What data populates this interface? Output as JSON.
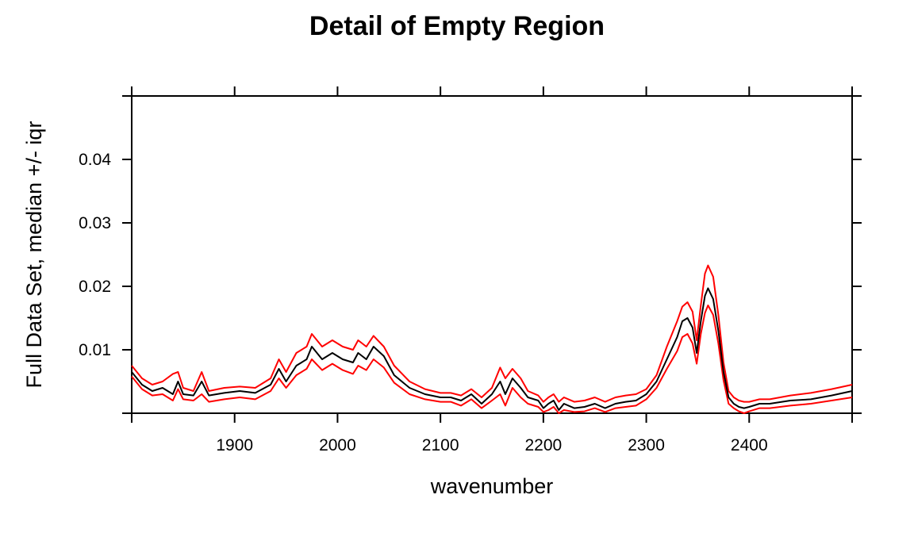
{
  "chart_data": {
    "type": "line",
    "title": "Detail of Empty Region",
    "xlabel": "wavenumber",
    "ylabel": "Full Data Set, median +/- iqr",
    "xlim": [
      1800,
      2500
    ],
    "ylim": [
      0,
      0.05
    ],
    "x_ticks": [
      1900,
      2000,
      2100,
      2200,
      2300,
      2400
    ],
    "x_tick_labels": [
      "1900",
      "2000",
      "2100",
      "2200",
      "2300",
      "2400"
    ],
    "y_ticks": [
      0.01,
      0.02,
      0.03,
      0.04
    ],
    "y_tick_labels": [
      "0.01",
      "0.02",
      "0.03",
      "0.04"
    ],
    "grid": false,
    "legend": "none",
    "x": [
      1800,
      1810,
      1820,
      1830,
      1840,
      1845,
      1850,
      1860,
      1868,
      1875,
      1890,
      1905,
      1920,
      1935,
      1943,
      1950,
      1960,
      1970,
      1975,
      1985,
      1995,
      2005,
      2015,
      2020,
      2028,
      2035,
      2045,
      2055,
      2070,
      2085,
      2100,
      2110,
      2120,
      2130,
      2140,
      2150,
      2158,
      2163,
      2170,
      2178,
      2185,
      2195,
      2200,
      2205,
      2210,
      2215,
      2220,
      2230,
      2240,
      2250,
      2260,
      2270,
      2280,
      2290,
      2300,
      2310,
      2320,
      2330,
      2335,
      2340,
      2345,
      2349,
      2353,
      2357,
      2360,
      2365,
      2370,
      2375,
      2380,
      2385,
      2390,
      2395,
      2400,
      2410,
      2420,
      2440,
      2460,
      2480,
      2500
    ],
    "series": [
      {
        "color": "#000000",
        "values": [
          0.0065,
          0.0045,
          0.0035,
          0.004,
          0.003,
          0.005,
          0.003,
          0.0028,
          0.005,
          0.0028,
          0.0032,
          0.0035,
          0.0032,
          0.0045,
          0.007,
          0.005,
          0.0075,
          0.0085,
          0.0105,
          0.0085,
          0.0095,
          0.0085,
          0.008,
          0.0095,
          0.0085,
          0.0105,
          0.009,
          0.006,
          0.004,
          0.003,
          0.0025,
          0.0025,
          0.002,
          0.003,
          0.0015,
          0.003,
          0.005,
          0.003,
          0.0055,
          0.004,
          0.0025,
          0.002,
          0.0008,
          0.0015,
          0.002,
          0.0005,
          0.0015,
          0.0008,
          0.001,
          0.0015,
          0.0008,
          0.0015,
          0.0018,
          0.002,
          0.003,
          0.005,
          0.0085,
          0.012,
          0.0145,
          0.015,
          0.0135,
          0.0095,
          0.0145,
          0.0185,
          0.0197,
          0.018,
          0.013,
          0.0065,
          0.0025,
          0.0015,
          0.001,
          0.0008,
          0.001,
          0.0015,
          0.0015,
          0.002,
          0.0022,
          0.0028,
          0.0035
        ]
      },
      {
        "color": "#ff0000",
        "values": [
          0.0075,
          0.0055,
          0.0045,
          0.005,
          0.0062,
          0.0065,
          0.004,
          0.0035,
          0.0065,
          0.0035,
          0.004,
          0.0042,
          0.004,
          0.0055,
          0.0085,
          0.0065,
          0.0095,
          0.0105,
          0.0125,
          0.0105,
          0.0115,
          0.0105,
          0.01,
          0.0115,
          0.0105,
          0.0122,
          0.0105,
          0.0075,
          0.005,
          0.0038,
          0.0032,
          0.0032,
          0.0028,
          0.0038,
          0.0025,
          0.004,
          0.0072,
          0.0055,
          0.007,
          0.0055,
          0.0035,
          0.0028,
          0.0018,
          0.0025,
          0.003,
          0.0018,
          0.0025,
          0.0018,
          0.002,
          0.0025,
          0.0018,
          0.0025,
          0.0028,
          0.003,
          0.0038,
          0.006,
          0.0105,
          0.0145,
          0.0168,
          0.0175,
          0.016,
          0.0115,
          0.017,
          0.022,
          0.0233,
          0.0215,
          0.0155,
          0.008,
          0.0035,
          0.0025,
          0.002,
          0.0018,
          0.0018,
          0.0022,
          0.0022,
          0.0028,
          0.0032,
          0.0038,
          0.0045
        ]
      },
      {
        "color": "#ff0000",
        "values": [
          0.0058,
          0.0038,
          0.0028,
          0.003,
          0.002,
          0.0038,
          0.0022,
          0.002,
          0.003,
          0.0018,
          0.0022,
          0.0025,
          0.0022,
          0.0035,
          0.0055,
          0.004,
          0.006,
          0.007,
          0.0085,
          0.0068,
          0.0078,
          0.0068,
          0.0062,
          0.0075,
          0.0068,
          0.0085,
          0.0072,
          0.0048,
          0.003,
          0.0022,
          0.0018,
          0.0018,
          0.0012,
          0.0022,
          0.0008,
          0.002,
          0.003,
          0.0012,
          0.004,
          0.0025,
          0.0015,
          0.001,
          0.0002,
          0.0005,
          0.001,
          0.0,
          0.0005,
          0.0002,
          0.0003,
          0.0008,
          0.0002,
          0.0008,
          0.001,
          0.0012,
          0.0022,
          0.004,
          0.007,
          0.0098,
          0.012,
          0.0125,
          0.011,
          0.0078,
          0.0125,
          0.0158,
          0.017,
          0.0155,
          0.011,
          0.0052,
          0.0015,
          0.0008,
          0.0003,
          0.0,
          0.0003,
          0.0008,
          0.0008,
          0.0012,
          0.0015,
          0.002,
          0.0025
        ]
      }
    ]
  }
}
